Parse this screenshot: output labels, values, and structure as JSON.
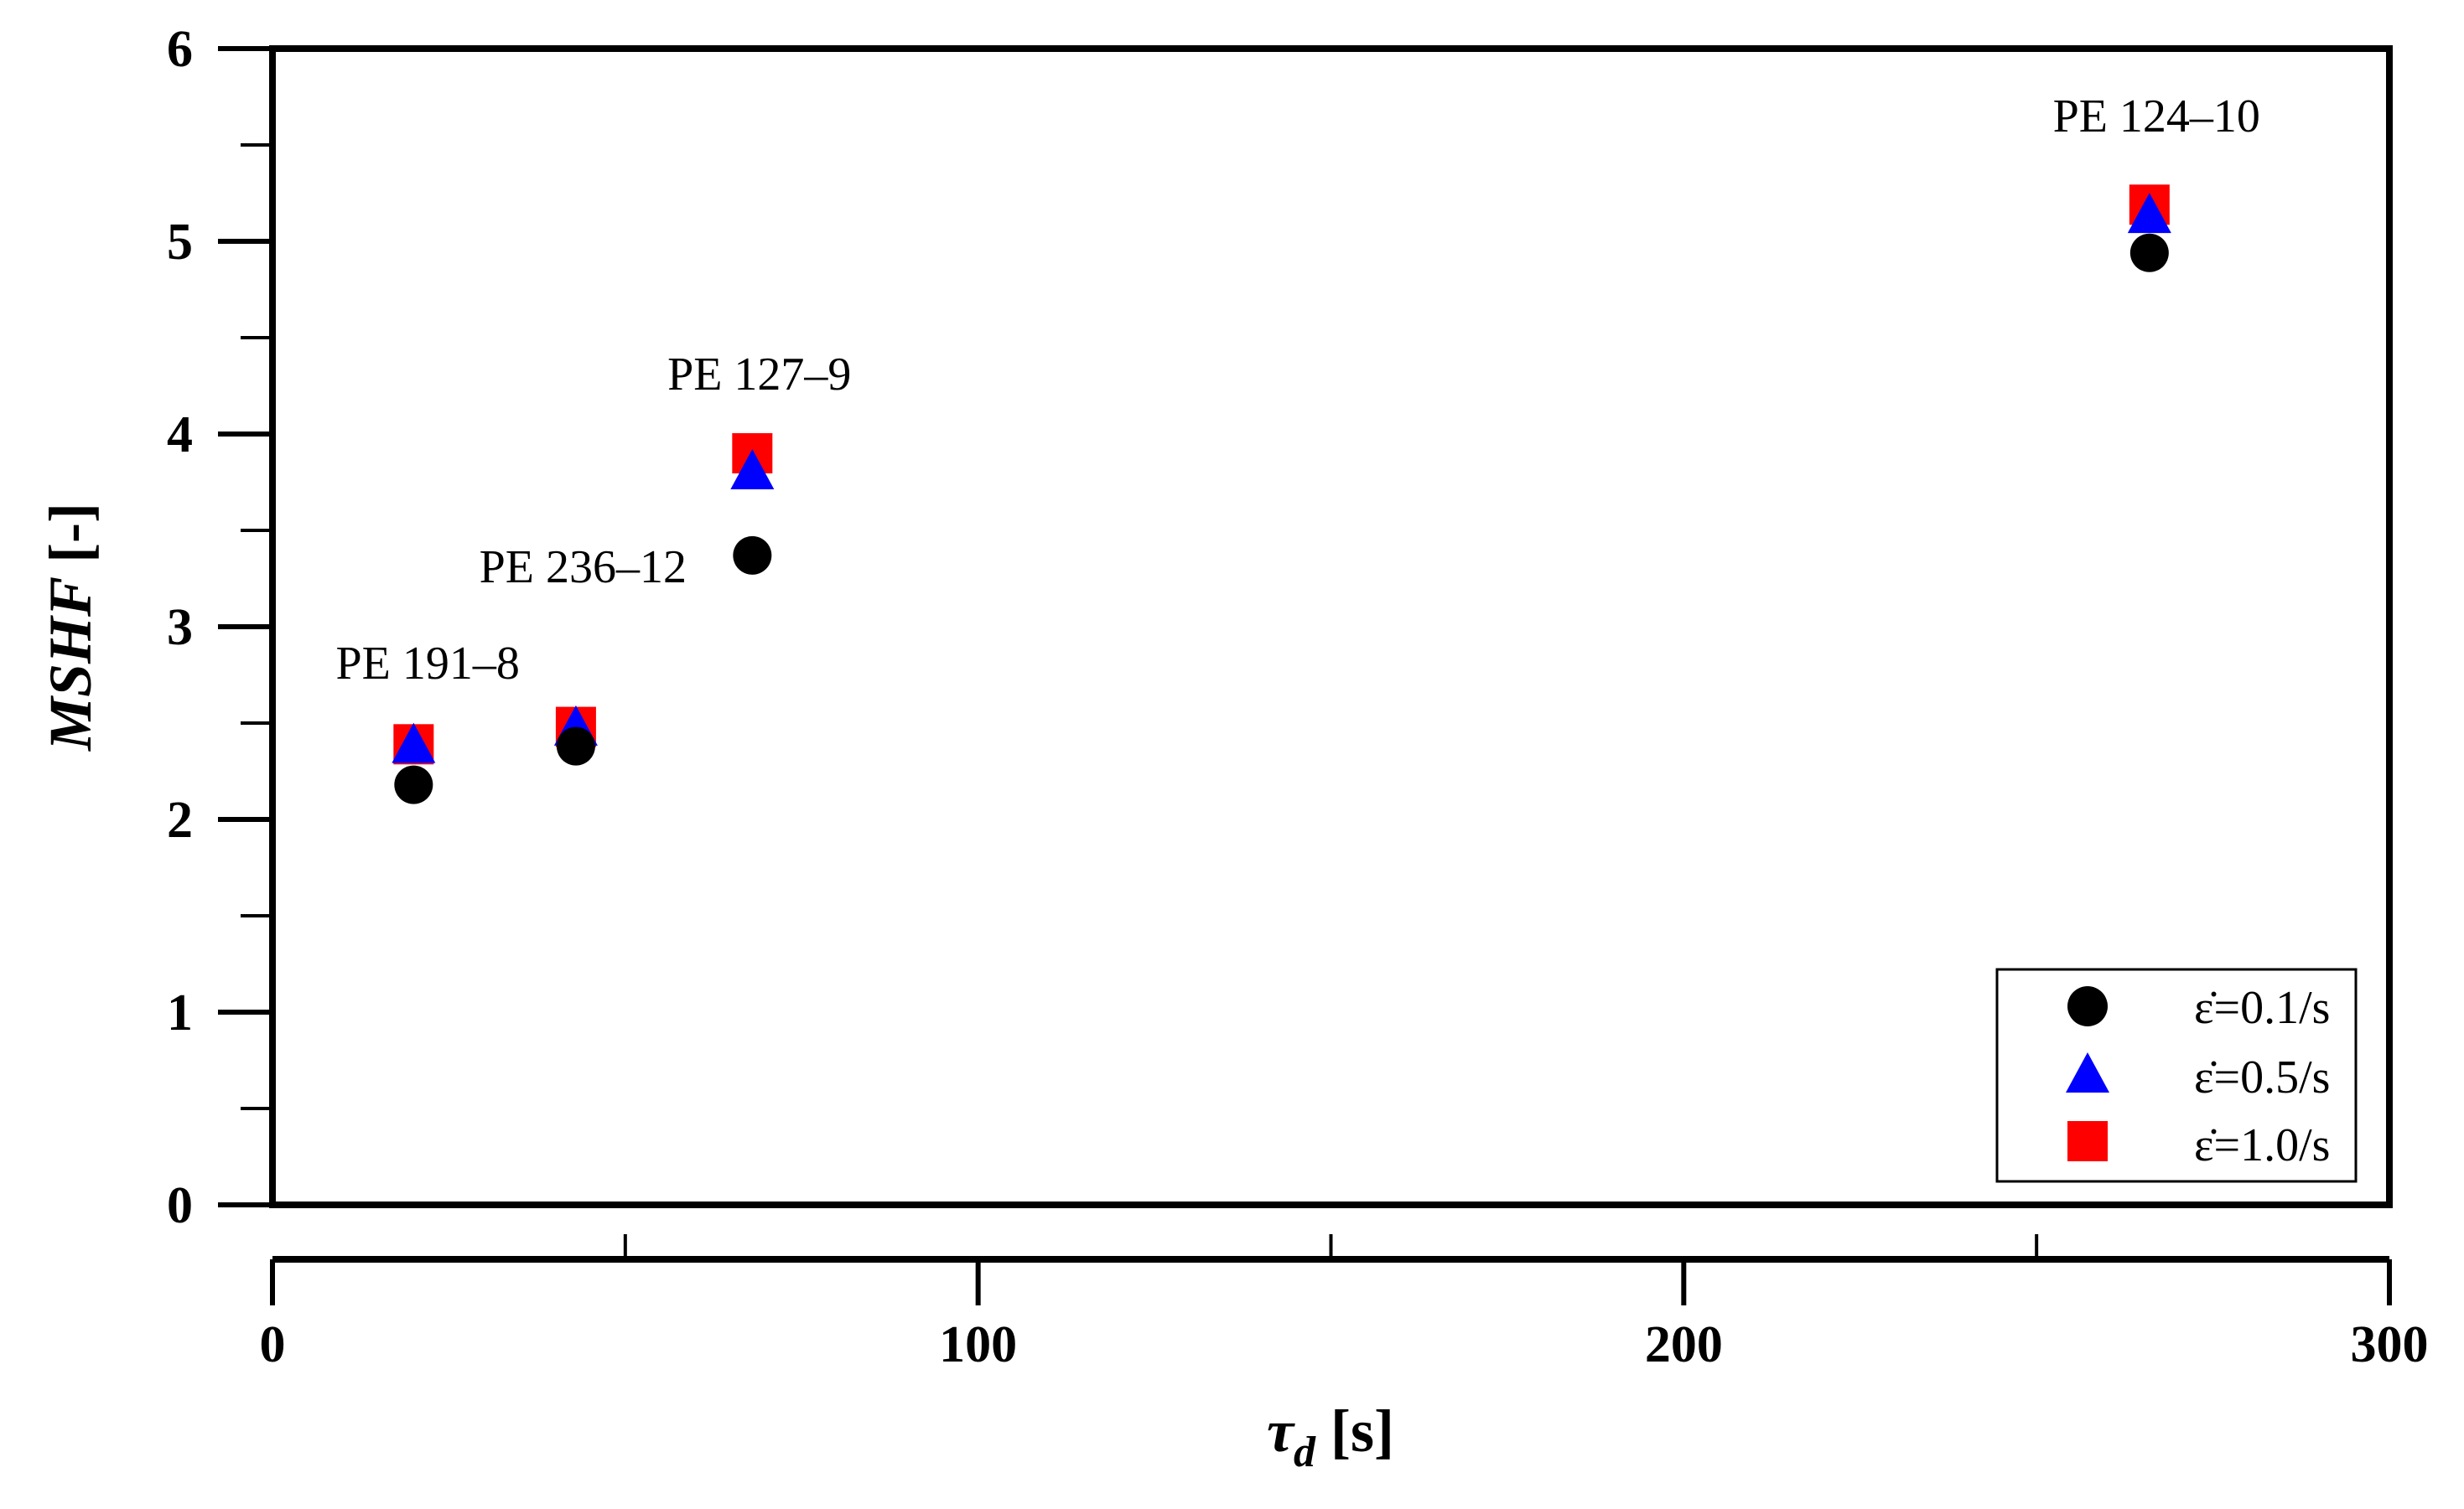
{
  "chart_data": {
    "type": "scatter",
    "xlabel": {
      "symbol": "τ",
      "subscript": "d",
      "unit": "[s]"
    },
    "ylabel": {
      "symbol": "MSHF",
      "unit": "[-]"
    },
    "xlim": [
      0,
      300
    ],
    "ylim": [
      0,
      6
    ],
    "xticks": [
      "0",
      "100",
      "200",
      "300"
    ],
    "yticks": [
      "0",
      "1",
      "2",
      "3",
      "4",
      "5",
      "6"
    ],
    "grid": false,
    "legend_position": "bottom-right",
    "series": [
      {
        "name": "ε̇=0.1/s",
        "marker": "circle",
        "color": "#000000",
        "x": [
          20,
          43,
          68,
          266
        ],
        "y": [
          2.18,
          2.38,
          3.37,
          4.94
        ]
      },
      {
        "name": "ε̇=0.5/s",
        "marker": "triangle",
        "color": "#0000ff",
        "x": [
          20,
          43,
          68,
          266
        ],
        "y": [
          2.38,
          2.47,
          3.8,
          5.13
        ]
      },
      {
        "name": "ε̇=1.0/s",
        "marker": "square",
        "color": "#ff0000",
        "x": [
          20,
          43,
          68,
          266
        ],
        "y": [
          2.39,
          2.48,
          3.9,
          5.19
        ]
      }
    ],
    "annotations": [
      {
        "text": "PE 191–8",
        "x": 22,
        "y": 2.73
      },
      {
        "text": "PE 236–12",
        "x": 44,
        "y": 3.23
      },
      {
        "text": "PE 127–9",
        "x": 69,
        "y": 4.23
      },
      {
        "text": "PE 124–10",
        "x": 267,
        "y": 5.57
      }
    ]
  }
}
